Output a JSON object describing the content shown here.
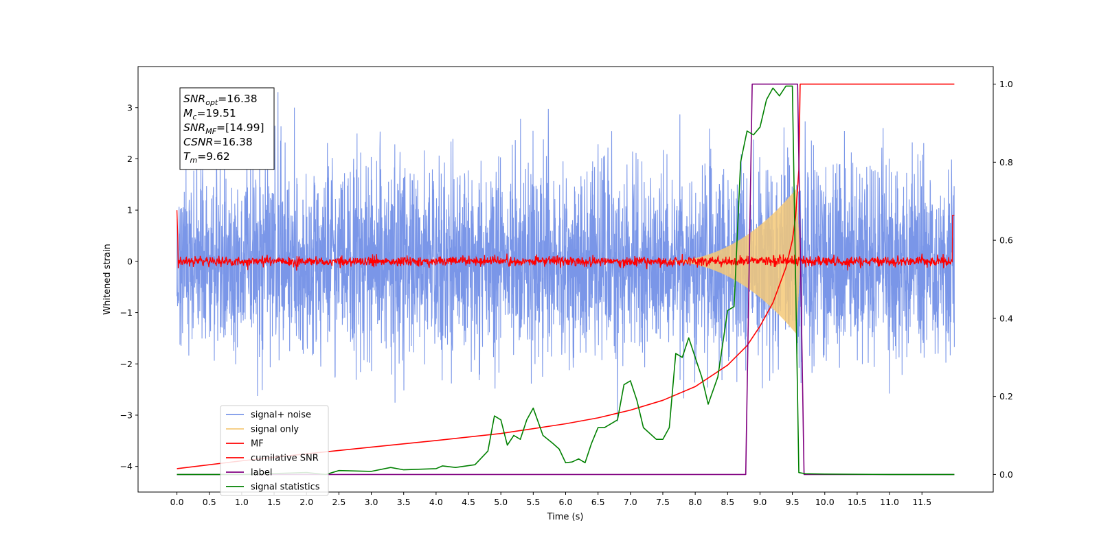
{
  "chart_data": {
    "type": "line",
    "title": "",
    "xlabel": "Time (s)",
    "ylabel": "Whitened strain",
    "y2label": "",
    "xlim": [
      -0.6,
      12.6
    ],
    "ylim": [
      -4.5,
      3.8
    ],
    "y2lim": [
      -0.045,
      1.045
    ],
    "x_ticks": [
      0.0,
      0.5,
      1.0,
      1.5,
      2.0,
      2.5,
      3.0,
      3.5,
      4.0,
      4.5,
      5.0,
      5.5,
      6.0,
      6.5,
      7.0,
      7.5,
      8.0,
      8.5,
      9.0,
      9.5,
      10.0,
      10.5,
      11.0,
      11.5
    ],
    "x_tick_labels": [
      "0.0",
      "0.5",
      "1.0",
      "1.5",
      "2.0",
      "2.5",
      "3.0",
      "3.5",
      "4.0",
      "4.5",
      "5.0",
      "5.5",
      "6.0",
      "6.5",
      "7.0",
      "7.5",
      "8.0",
      "8.5",
      "9.0",
      "9.5",
      "10.0",
      "10.5",
      "11.0",
      "11.5"
    ],
    "y_ticks": [
      -4,
      -3,
      -2,
      -1,
      0,
      1,
      2,
      3
    ],
    "y_tick_labels": [
      "−4",
      "−3",
      "−2",
      "−1",
      "0",
      "1",
      "2",
      "3"
    ],
    "y2_ticks": [
      0.0,
      0.2,
      0.4,
      0.6,
      0.8,
      1.0
    ],
    "y2_tick_labels": [
      "0.0",
      "0.2",
      "0.4",
      "0.6",
      "0.8",
      "1.0"
    ],
    "legend_position": "lower-left",
    "grid": false,
    "annotation": {
      "lines": [
        {
          "base": "SNR",
          "sub": "opt",
          "value": "=16.38"
        },
        {
          "base": "M",
          "sub": "c",
          "value": "=19.51"
        },
        {
          "base": "SNR",
          "sub": "MF",
          "value": "=[14.99]"
        },
        {
          "base": "CSNR",
          "sub": "",
          "value": "=16.38"
        },
        {
          "base": "T",
          "sub": "m",
          "value": "=9.62"
        }
      ]
    },
    "series": [
      {
        "name": "signal+ noise",
        "color": "#7a96e8",
        "axis": "left",
        "kind": "noise",
        "x_range": [
          0.0,
          12.0
        ],
        "amplitude_range": [
          -3.3,
          3.3
        ]
      },
      {
        "name": "signal only",
        "color": "#f5c978",
        "axis": "left",
        "kind": "chirp",
        "x_range": [
          7.5,
          9.62
        ],
        "peak_amplitude": 1.5
      },
      {
        "name": "MF",
        "color": "#ff0000",
        "axis": "left",
        "kind": "noise-small",
        "x_range": [
          0.0,
          12.0
        ],
        "amplitude_range": [
          -0.15,
          0.2
        ]
      },
      {
        "name": "cumilative SNR",
        "color": "#ff0000",
        "axis": "right",
        "x": [
          0.0,
          1.0,
          2.0,
          3.0,
          4.0,
          5.0,
          6.0,
          6.5,
          7.0,
          7.5,
          8.0,
          8.5,
          8.8,
          9.0,
          9.2,
          9.4,
          9.5,
          9.55,
          9.6,
          9.62,
          9.65,
          10.0,
          11.0,
          12.0
        ],
        "y": [
          0.015,
          0.035,
          0.053,
          0.07,
          0.087,
          0.105,
          0.13,
          0.145,
          0.165,
          0.19,
          0.225,
          0.28,
          0.33,
          0.38,
          0.44,
          0.53,
          0.6,
          0.66,
          0.78,
          1.0,
          1.0,
          1.0,
          1.0,
          1.0
        ]
      },
      {
        "name": "label",
        "color": "#800080",
        "axis": "right",
        "x": [
          0.0,
          8.78,
          8.88,
          9.58,
          9.68,
          12.0
        ],
        "y": [
          0.0,
          0.0,
          1.0,
          1.0,
          0.0,
          0.0
        ]
      },
      {
        "name": "signal statistics",
        "color": "#008000",
        "axis": "right",
        "x": [
          0.0,
          1.0,
          2.0,
          2.3,
          2.5,
          3.0,
          3.3,
          3.5,
          4.0,
          4.1,
          4.3,
          4.6,
          4.8,
          4.9,
          5.0,
          5.1,
          5.2,
          5.3,
          5.4,
          5.5,
          5.65,
          5.8,
          5.9,
          6.0,
          6.1,
          6.2,
          6.3,
          6.4,
          6.5,
          6.6,
          6.8,
          6.9,
          7.0,
          7.1,
          7.2,
          7.4,
          7.5,
          7.6,
          7.7,
          7.8,
          7.9,
          8.0,
          8.1,
          8.2,
          8.35,
          8.5,
          8.6,
          8.7,
          8.8,
          8.9,
          9.0,
          9.1,
          9.2,
          9.3,
          9.4,
          9.5,
          9.6,
          9.7,
          10.0,
          11.0,
          12.0
        ],
        "y": [
          0.0,
          0.0,
          0.005,
          0.0,
          0.01,
          0.008,
          0.018,
          0.012,
          0.015,
          0.022,
          0.018,
          0.025,
          0.06,
          0.15,
          0.14,
          0.075,
          0.1,
          0.09,
          0.14,
          0.17,
          0.1,
          0.08,
          0.065,
          0.03,
          0.032,
          0.04,
          0.03,
          0.08,
          0.12,
          0.12,
          0.14,
          0.23,
          0.24,
          0.19,
          0.12,
          0.09,
          0.09,
          0.12,
          0.31,
          0.3,
          0.35,
          0.3,
          0.25,
          0.18,
          0.25,
          0.42,
          0.43,
          0.8,
          0.88,
          0.87,
          0.89,
          0.96,
          0.99,
          0.97,
          0.995,
          0.995,
          0.005,
          0.002,
          0.001,
          0.0,
          0.0
        ]
      }
    ]
  }
}
